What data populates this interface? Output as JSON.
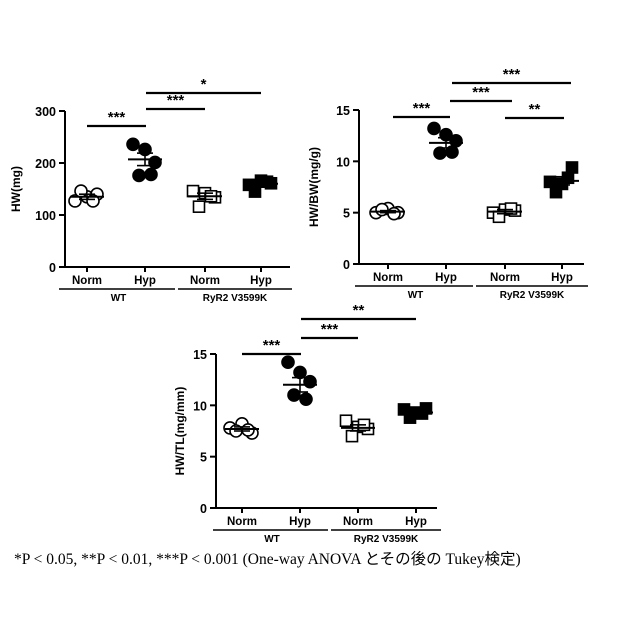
{
  "footnote": "*P < 0.05,  **P < 0.01,  ***P < 0.001   (One-way ANOVA とその後の Tukey検定)",
  "chart_data": [
    {
      "type": "scatter",
      "ylabel": "HW(mg)",
      "ylim": [
        0,
        300
      ],
      "yticks": [
        0,
        100,
        200,
        300
      ],
      "categories": [
        "Norm",
        "Hyp",
        "Norm",
        "Hyp"
      ],
      "groups": [
        "WT",
        "RyR2 V3599K"
      ],
      "series": [
        {
          "marker": "open-circle",
          "points": [
            127,
            135,
            140,
            146,
            127
          ],
          "mean": 135,
          "sem": 5
        },
        {
          "marker": "filled-circle",
          "points": [
            236,
            226,
            201,
            176,
            178
          ],
          "mean": 207,
          "sem": 12
        },
        {
          "marker": "open-square",
          "points": [
            146,
            142,
            134,
            116,
            136
          ],
          "mean": 136,
          "sem": 6
        },
        {
          "marker": "filled-square",
          "points": [
            158,
            166,
            161,
            145,
            164
          ],
          "mean": 160,
          "sem": 4
        }
      ],
      "significance": [
        {
          "from": 0,
          "to": 1,
          "label": "***"
        },
        {
          "from": 1,
          "to": 2,
          "label": "***"
        },
        {
          "from": 1,
          "to": 3,
          "label": "*"
        }
      ]
    },
    {
      "type": "scatter",
      "ylabel": "HW/BW(mg/g)",
      "ylim": [
        0,
        15
      ],
      "yticks": [
        0,
        5,
        10,
        15
      ],
      "categories": [
        "Norm",
        "Hyp",
        "Norm",
        "Hyp"
      ],
      "groups": [
        "WT",
        "RyR2 V3599K"
      ],
      "series": [
        {
          "marker": "open-circle",
          "points": [
            5.0,
            5.4,
            5.0,
            5.3,
            4.9
          ],
          "mean": 5.1,
          "sem": 0.1
        },
        {
          "marker": "filled-circle",
          "points": [
            13.2,
            12.6,
            12.0,
            10.8,
            10.9
          ],
          "mean": 11.8,
          "sem": 0.5
        },
        {
          "marker": "open-square",
          "points": [
            5.0,
            5.3,
            5.2,
            4.6,
            5.4
          ],
          "mean": 5.1,
          "sem": 0.2
        },
        {
          "marker": "filled-square",
          "points": [
            8.0,
            7.8,
            9.4,
            7.0,
            8.4
          ],
          "mean": 8.1,
          "sem": 0.4
        }
      ],
      "significance": [
        {
          "from": 0,
          "to": 1,
          "label": "***"
        },
        {
          "from": 1,
          "to": 2,
          "label": "***"
        },
        {
          "from": 1,
          "to": 3,
          "label": "***"
        },
        {
          "from": 2,
          "to": 3,
          "label": "**"
        }
      ]
    },
    {
      "type": "scatter",
      "ylabel": "HW/TL(mg/mm)",
      "ylim": [
        0,
        15
      ],
      "yticks": [
        0,
        5,
        10,
        15
      ],
      "categories": [
        "Norm",
        "Hyp",
        "Norm",
        "Hyp"
      ],
      "groups": [
        "WT",
        "RyR2 V3599K"
      ],
      "series": [
        {
          "marker": "open-circle",
          "points": [
            7.8,
            8.2,
            7.3,
            7.5,
            7.6
          ],
          "mean": 7.7,
          "sem": 0.2
        },
        {
          "marker": "filled-circle",
          "points": [
            14.2,
            13.2,
            12.3,
            11.0,
            10.6
          ],
          "mean": 12.0,
          "sem": 0.7
        },
        {
          "marker": "open-square",
          "points": [
            8.5,
            7.9,
            7.7,
            7.0,
            8.1
          ],
          "mean": 7.8,
          "sem": 0.3
        },
        {
          "marker": "filled-square",
          "points": [
            9.6,
            9.3,
            9.7,
            8.8,
            9.2
          ],
          "mean": 9.3,
          "sem": 0.2
        }
      ],
      "significance": [
        {
          "from": 0,
          "to": 1,
          "label": "***"
        },
        {
          "from": 1,
          "to": 2,
          "label": "***"
        },
        {
          "from": 1,
          "to": 3,
          "label": "**"
        }
      ]
    }
  ]
}
